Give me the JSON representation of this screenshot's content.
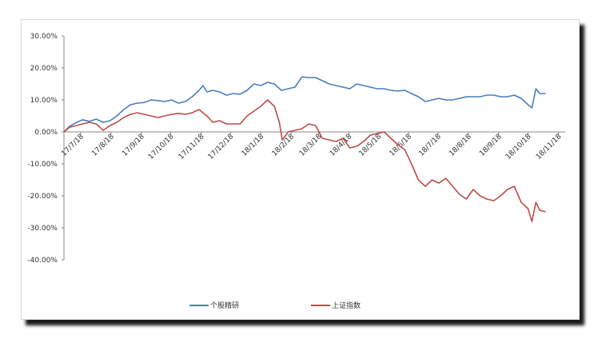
{
  "chart_data": {
    "type": "line",
    "title": "",
    "xlabel": "",
    "ylabel": "",
    "ylim": [
      -0.4,
      0.3
    ],
    "yticks": [
      "30.00%",
      "20.00%",
      "10.00%",
      "0.00%",
      "-10.00%",
      "-20.00%",
      "-30.00%",
      "-40.00%"
    ],
    "ytick_values": [
      0.3,
      0.2,
      0.1,
      0.0,
      -0.1,
      -0.2,
      -0.3,
      -0.4
    ],
    "x_range": [
      "2017-07-01",
      "2018-11-25"
    ],
    "xticks": [
      "17/7/18",
      "17/8/18",
      "17/9/18",
      "17/10/18",
      "17/11/18",
      "17/12/18",
      "18/1/18",
      "18/2/18",
      "18/3/18",
      "18/4/18",
      "18/5/18",
      "18/6/18",
      "18/7/18",
      "18/8/18",
      "18/9/18",
      "18/10/18",
      "18/11/18"
    ],
    "xtick_dates": [
      "2017-07-18",
      "2017-08-18",
      "2017-09-18",
      "2017-10-18",
      "2017-11-18",
      "2017-12-18",
      "2018-01-18",
      "2018-02-18",
      "2018-03-18",
      "2018-04-18",
      "2018-05-18",
      "2018-06-18",
      "2018-07-18",
      "2018-08-18",
      "2018-09-18",
      "2018-10-18",
      "2018-11-18"
    ],
    "legend_position": "bottom",
    "grid": false,
    "series": [
      {
        "name": "个股精研",
        "color": "#4a7ebb",
        "points": [
          [
            "2017-07-01",
            0.0
          ],
          [
            "2017-07-07",
            0.018
          ],
          [
            "2017-07-14",
            0.03
          ],
          [
            "2017-07-20",
            0.038
          ],
          [
            "2017-07-27",
            0.033
          ],
          [
            "2017-08-03",
            0.04
          ],
          [
            "2017-08-10",
            0.03
          ],
          [
            "2017-08-17",
            0.035
          ],
          [
            "2017-08-24",
            0.05
          ],
          [
            "2017-08-31",
            0.07
          ],
          [
            "2017-09-07",
            0.085
          ],
          [
            "2017-09-14",
            0.09
          ],
          [
            "2017-09-21",
            0.092
          ],
          [
            "2017-09-28",
            0.1
          ],
          [
            "2017-10-05",
            0.098
          ],
          [
            "2017-10-12",
            0.095
          ],
          [
            "2017-10-19",
            0.1
          ],
          [
            "2017-10-26",
            0.09
          ],
          [
            "2017-11-02",
            0.095
          ],
          [
            "2017-11-09",
            0.11
          ],
          [
            "2017-11-16",
            0.13
          ],
          [
            "2017-11-20",
            0.145
          ],
          [
            "2017-11-24",
            0.125
          ],
          [
            "2017-11-30",
            0.13
          ],
          [
            "2017-12-07",
            0.125
          ],
          [
            "2017-12-14",
            0.115
          ],
          [
            "2017-12-21",
            0.12
          ],
          [
            "2017-12-28",
            0.118
          ],
          [
            "2018-01-04",
            0.13
          ],
          [
            "2018-01-11",
            0.15
          ],
          [
            "2018-01-18",
            0.145
          ],
          [
            "2018-01-25",
            0.155
          ],
          [
            "2018-02-01",
            0.15
          ],
          [
            "2018-02-08",
            0.13
          ],
          [
            "2018-02-15",
            0.135
          ],
          [
            "2018-02-22",
            0.14
          ],
          [
            "2018-03-01",
            0.172
          ],
          [
            "2018-03-08",
            0.17
          ],
          [
            "2018-03-15",
            0.17
          ],
          [
            "2018-03-22",
            0.16
          ],
          [
            "2018-03-29",
            0.15
          ],
          [
            "2018-04-05",
            0.145
          ],
          [
            "2018-04-12",
            0.14
          ],
          [
            "2018-04-19",
            0.135
          ],
          [
            "2018-04-26",
            0.15
          ],
          [
            "2018-05-03",
            0.145
          ],
          [
            "2018-05-10",
            0.14
          ],
          [
            "2018-05-17",
            0.135
          ],
          [
            "2018-05-24",
            0.135
          ],
          [
            "2018-05-31",
            0.13
          ],
          [
            "2018-06-07",
            0.128
          ],
          [
            "2018-06-14",
            0.13
          ],
          [
            "2018-06-21",
            0.12
          ],
          [
            "2018-06-28",
            0.11
          ],
          [
            "2018-07-05",
            0.095
          ],
          [
            "2018-07-12",
            0.1
          ],
          [
            "2018-07-19",
            0.105
          ],
          [
            "2018-07-26",
            0.1
          ],
          [
            "2018-08-02",
            0.1
          ],
          [
            "2018-08-09",
            0.105
          ],
          [
            "2018-08-16",
            0.11
          ],
          [
            "2018-08-23",
            0.11
          ],
          [
            "2018-08-30",
            0.11
          ],
          [
            "2018-09-06",
            0.115
          ],
          [
            "2018-09-13",
            0.115
          ],
          [
            "2018-09-20",
            0.11
          ],
          [
            "2018-09-27",
            0.11
          ],
          [
            "2018-10-04",
            0.115
          ],
          [
            "2018-10-11",
            0.105
          ],
          [
            "2018-10-18",
            0.085
          ],
          [
            "2018-10-22",
            0.075
          ],
          [
            "2018-10-26",
            0.135
          ],
          [
            "2018-10-30",
            0.12
          ],
          [
            "2018-11-05",
            0.12
          ]
        ]
      },
      {
        "name": "上证指数",
        "color": "#be4b48",
        "points": [
          [
            "2017-07-01",
            0.0
          ],
          [
            "2017-07-07",
            0.015
          ],
          [
            "2017-07-14",
            0.02
          ],
          [
            "2017-07-20",
            0.025
          ],
          [
            "2017-07-27",
            0.03
          ],
          [
            "2017-08-03",
            0.025
          ],
          [
            "2017-08-10",
            0.005
          ],
          [
            "2017-08-17",
            0.02
          ],
          [
            "2017-08-24",
            0.03
          ],
          [
            "2017-08-31",
            0.045
          ],
          [
            "2017-09-07",
            0.055
          ],
          [
            "2017-09-14",
            0.06
          ],
          [
            "2017-09-21",
            0.055
          ],
          [
            "2017-09-28",
            0.05
          ],
          [
            "2017-10-05",
            0.045
          ],
          [
            "2017-10-12",
            0.05
          ],
          [
            "2017-10-19",
            0.055
          ],
          [
            "2017-10-26",
            0.058
          ],
          [
            "2017-11-02",
            0.055
          ],
          [
            "2017-11-09",
            0.06
          ],
          [
            "2017-11-16",
            0.07
          ],
          [
            "2017-11-20",
            0.06
          ],
          [
            "2017-11-24",
            0.05
          ],
          [
            "2017-11-30",
            0.03
          ],
          [
            "2017-12-07",
            0.035
          ],
          [
            "2017-12-14",
            0.025
          ],
          [
            "2017-12-21",
            0.025
          ],
          [
            "2017-12-28",
            0.025
          ],
          [
            "2018-01-04",
            0.05
          ],
          [
            "2018-01-11",
            0.065
          ],
          [
            "2018-01-18",
            0.08
          ],
          [
            "2018-01-25",
            0.1
          ],
          [
            "2018-02-01",
            0.08
          ],
          [
            "2018-02-06",
            0.03
          ],
          [
            "2018-02-09",
            -0.025
          ],
          [
            "2018-02-15",
            0.0
          ],
          [
            "2018-02-22",
            0.005
          ],
          [
            "2018-03-01",
            0.01
          ],
          [
            "2018-03-08",
            0.025
          ],
          [
            "2018-03-15",
            0.02
          ],
          [
            "2018-03-22",
            -0.02
          ],
          [
            "2018-03-29",
            -0.025
          ],
          [
            "2018-04-05",
            -0.03
          ],
          [
            "2018-04-12",
            -0.02
          ],
          [
            "2018-04-19",
            -0.05
          ],
          [
            "2018-04-26",
            -0.045
          ],
          [
            "2018-05-03",
            -0.03
          ],
          [
            "2018-05-10",
            -0.01
          ],
          [
            "2018-05-17",
            -0.005
          ],
          [
            "2018-05-24",
            0.0
          ],
          [
            "2018-05-31",
            -0.02
          ],
          [
            "2018-06-07",
            -0.04
          ],
          [
            "2018-06-14",
            -0.055
          ],
          [
            "2018-06-21",
            -0.1
          ],
          [
            "2018-06-28",
            -0.15
          ],
          [
            "2018-07-05",
            -0.17
          ],
          [
            "2018-07-12",
            -0.15
          ],
          [
            "2018-07-19",
            -0.16
          ],
          [
            "2018-07-26",
            -0.145
          ],
          [
            "2018-08-02",
            -0.17
          ],
          [
            "2018-08-09",
            -0.195
          ],
          [
            "2018-08-16",
            -0.21
          ],
          [
            "2018-08-23",
            -0.18
          ],
          [
            "2018-08-30",
            -0.2
          ],
          [
            "2018-09-06",
            -0.21
          ],
          [
            "2018-09-13",
            -0.215
          ],
          [
            "2018-09-20",
            -0.2
          ],
          [
            "2018-09-27",
            -0.18
          ],
          [
            "2018-10-04",
            -0.17
          ],
          [
            "2018-10-11",
            -0.22
          ],
          [
            "2018-10-18",
            -0.24
          ],
          [
            "2018-10-22",
            -0.28
          ],
          [
            "2018-10-26",
            -0.22
          ],
          [
            "2018-10-30",
            -0.245
          ],
          [
            "2018-11-05",
            -0.25
          ]
        ]
      }
    ]
  }
}
